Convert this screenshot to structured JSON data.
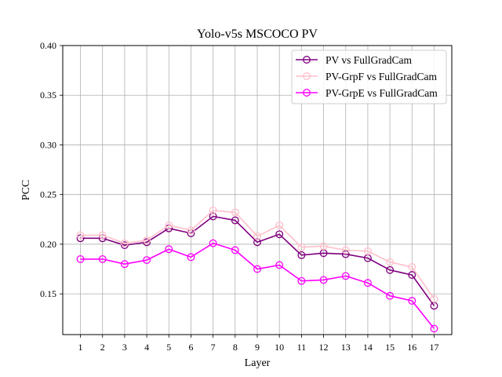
{
  "chart_data": {
    "type": "line",
    "title": "Yolo-v5s MSCOCO PV",
    "xlabel": "Layer",
    "ylabel": "PCC",
    "x": [
      1,
      2,
      3,
      4,
      5,
      6,
      7,
      8,
      9,
      10,
      11,
      12,
      13,
      14,
      15,
      16,
      17
    ],
    "x_tick_labels": [
      "1",
      "2",
      "3",
      "4",
      "5",
      "6",
      "7",
      "8",
      "9",
      "10",
      "11",
      "12",
      "13",
      "14",
      "15",
      "16",
      "17"
    ],
    "xlim": [
      0.2,
      17.8
    ],
    "ylim": [
      0.109,
      0.4
    ],
    "y_ticks": [
      0.15,
      0.2,
      0.25,
      0.3,
      0.35,
      0.4
    ],
    "y_tick_labels": [
      "0.15",
      "0.20",
      "0.25",
      "0.30",
      "0.35",
      "0.40"
    ],
    "grid": true,
    "legend_position": "top-right",
    "series": [
      {
        "name": "PV vs FullGradCam",
        "color": "#800080",
        "marker": "hollow-circle",
        "values": [
          0.206,
          0.206,
          0.199,
          0.202,
          0.216,
          0.211,
          0.228,
          0.224,
          0.202,
          0.21,
          0.189,
          0.191,
          0.19,
          0.186,
          0.174,
          0.169,
          0.138
        ]
      },
      {
        "name": "PV-GrpF vs FullGradCam",
        "color": "#ffc0cb",
        "marker": "hollow-circle",
        "values": [
          0.209,
          0.209,
          0.201,
          0.204,
          0.219,
          0.214,
          0.234,
          0.232,
          0.208,
          0.219,
          0.197,
          0.198,
          0.194,
          0.193,
          0.182,
          0.177,
          0.145
        ]
      },
      {
        "name": "PV-GrpE vs FullGradCam",
        "color": "#ff00ff",
        "marker": "hollow-circle",
        "values": [
          0.185,
          0.185,
          0.18,
          0.184,
          0.195,
          0.187,
          0.201,
          0.194,
          0.175,
          0.179,
          0.163,
          0.164,
          0.168,
          0.161,
          0.148,
          0.143,
          0.115
        ]
      }
    ]
  }
}
